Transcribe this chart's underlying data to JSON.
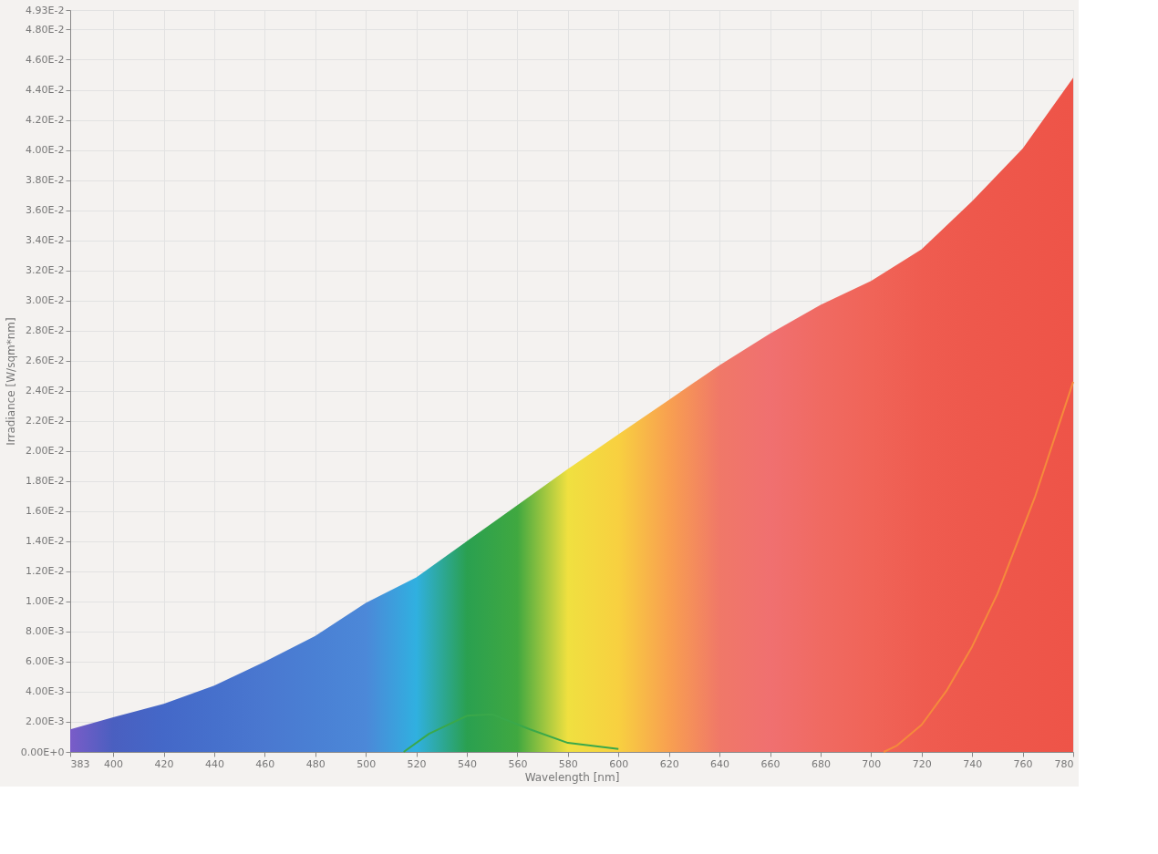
{
  "chart_data": {
    "type": "area",
    "xlabel": "Wavelength [nm]",
    "ylabel": "Irradiance [W/sqm*nm]",
    "x": [
      383,
      400,
      420,
      440,
      460,
      480,
      500,
      520,
      540,
      560,
      580,
      600,
      620,
      640,
      660,
      680,
      700,
      720,
      740,
      760,
      780
    ],
    "series": [
      {
        "values": [
          0.0015,
          0.0023,
          0.0032,
          0.0044,
          0.006,
          0.0077,
          0.0099,
          0.0116,
          0.014,
          0.0164,
          0.0188,
          0.0211,
          0.0234,
          0.0257,
          0.0278,
          0.0297,
          0.0313,
          0.0334,
          0.0366,
          0.0401,
          0.0448
        ],
        "colors": [
          "#7a5cc8",
          "#4a5fc0",
          "#4468c8",
          "#4670cc",
          "#4a78d0",
          "#4a80d4",
          "#4c88d8",
          "#30b0e0",
          "#2aa050",
          "#40a840",
          "#f0e040",
          "#f8d040",
          "#f8a050",
          "#f07868",
          "#f07070",
          "#f06a62",
          "#f06458",
          "#ef5c50",
          "#ee584c",
          "#ee564a",
          "#ee5448"
        ]
      },
      {
        "type": "line",
        "color": "#3aa84a",
        "x": [
          515,
          525,
          540,
          550,
          565,
          580,
          600
        ],
        "values": [
          0,
          0.0012,
          0.0024,
          0.0025,
          0.0015,
          0.0006,
          0.0002
        ]
      },
      {
        "type": "line",
        "color": "#f58a3c",
        "x": [
          705,
          710,
          720,
          730,
          740,
          750,
          765,
          780
        ],
        "values": [
          0,
          0.0004,
          0.0018,
          0.0041,
          0.007,
          0.0105,
          0.017,
          0.0246
        ]
      }
    ],
    "xlim": [
      383,
      780
    ],
    "xticks": [
      383,
      400,
      420,
      440,
      460,
      480,
      500,
      520,
      540,
      560,
      580,
      600,
      620,
      640,
      660,
      680,
      700,
      720,
      740,
      760,
      780
    ],
    "ylim": [
      0,
      0.0493
    ],
    "yticks": [
      {
        "value": 0,
        "label": "0.00E+0"
      },
      {
        "value": 0.002,
        "label": "2.00E-3"
      },
      {
        "value": 0.004,
        "label": "4.00E-3"
      },
      {
        "value": 0.006,
        "label": "6.00E-3"
      },
      {
        "value": 0.008,
        "label": "8.00E-3"
      },
      {
        "value": 0.01,
        "label": "1.00E-2"
      },
      {
        "value": 0.012,
        "label": "1.20E-2"
      },
      {
        "value": 0.014,
        "label": "1.40E-2"
      },
      {
        "value": 0.016,
        "label": "1.60E-2"
      },
      {
        "value": 0.018,
        "label": "1.80E-2"
      },
      {
        "value": 0.02,
        "label": "2.00E-2"
      },
      {
        "value": 0.022,
        "label": "2.20E-2"
      },
      {
        "value": 0.024,
        "label": "2.40E-2"
      },
      {
        "value": 0.026,
        "label": "2.60E-2"
      },
      {
        "value": 0.028,
        "label": "2.80E-2"
      },
      {
        "value": 0.03,
        "label": "3.00E-2"
      },
      {
        "value": 0.032,
        "label": "3.20E-2"
      },
      {
        "value": 0.034,
        "label": "3.40E-2"
      },
      {
        "value": 0.036,
        "label": "3.60E-2"
      },
      {
        "value": 0.038,
        "label": "3.80E-2"
      },
      {
        "value": 0.04,
        "label": "4.00E-2"
      },
      {
        "value": 0.042,
        "label": "4.20E-2"
      },
      {
        "value": 0.044,
        "label": "4.40E-2"
      },
      {
        "value": 0.046,
        "label": "4.60E-2"
      },
      {
        "value": 0.048,
        "label": "4.80E-2"
      },
      {
        "value": 0.0493,
        "label": "4.93E-2"
      }
    ],
    "grid": true
  }
}
